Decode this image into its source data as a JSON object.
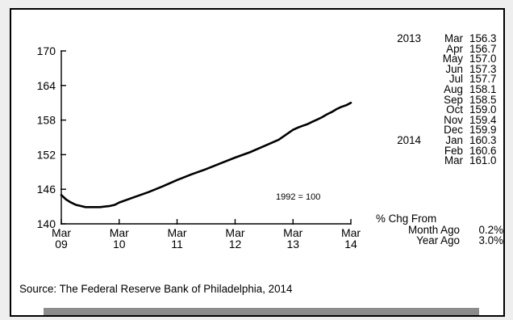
{
  "chart_data": {
    "type": "line",
    "x": [
      "2009-03",
      "2009-04",
      "2009-05",
      "2009-06",
      "2009-07",
      "2009-08",
      "2009-09",
      "2009-10",
      "2009-11",
      "2009-12",
      "2010-01",
      "2010-02",
      "2010-03",
      "2010-06",
      "2010-09",
      "2010-12",
      "2011-03",
      "2011-06",
      "2011-09",
      "2011-12",
      "2012-03",
      "2012-06",
      "2012-09",
      "2012-12",
      "2013-03",
      "2013-04",
      "2013-05",
      "2013-06",
      "2013-07",
      "2013-08",
      "2013-09",
      "2013-10",
      "2013-11",
      "2013-12",
      "2014-01",
      "2014-02",
      "2014-03"
    ],
    "y": [
      145.0,
      144.2,
      143.7,
      143.3,
      143.1,
      142.9,
      142.9,
      142.9,
      142.9,
      143.0,
      143.1,
      143.3,
      143.7,
      144.6,
      145.5,
      146.5,
      147.6,
      148.6,
      149.5,
      150.5,
      151.5,
      152.4,
      153.5,
      154.6,
      156.3,
      156.7,
      157.0,
      157.3,
      157.7,
      158.1,
      158.5,
      159.0,
      159.4,
      159.9,
      160.3,
      160.6,
      161.0
    ],
    "ylim": [
      140,
      170
    ],
    "yticks": [
      140,
      146,
      152,
      158,
      164,
      170
    ],
    "xticks": [
      {
        "date": "2009-03",
        "line1": "Mar",
        "line2": "09"
      },
      {
        "date": "2010-03",
        "line1": "Mar",
        "line2": "10"
      },
      {
        "date": "2011-03",
        "line1": "Mar",
        "line2": "11"
      },
      {
        "date": "2012-03",
        "line1": "Mar",
        "line2": "12"
      },
      {
        "date": "2013-03",
        "line1": "Mar",
        "line2": "13"
      },
      {
        "date": "2014-03",
        "line1": "Mar",
        "line2": "14"
      }
    ],
    "annotation": "1992 = 100",
    "grid": false,
    "line_color": "#000000"
  },
  "table": [
    {
      "year": "2013",
      "month": "Mar",
      "value": "156.3"
    },
    {
      "year": "",
      "month": "Apr",
      "value": "156.7"
    },
    {
      "year": "",
      "month": "May",
      "value": "157.0"
    },
    {
      "year": "",
      "month": "Jun",
      "value": "157.3"
    },
    {
      "year": "",
      "month": "Jul",
      "value": "157.7"
    },
    {
      "year": "",
      "month": "Aug",
      "value": "158.1"
    },
    {
      "year": "",
      "month": "Sep",
      "value": "158.5"
    },
    {
      "year": "",
      "month": "Oct",
      "value": "159.0"
    },
    {
      "year": "",
      "month": "Nov",
      "value": "159.4"
    },
    {
      "year": "",
      "month": "Dec",
      "value": "159.9"
    },
    {
      "year": "2014",
      "month": "Jan",
      "value": "160.3"
    },
    {
      "year": "",
      "month": "Feb",
      "value": "160.6"
    },
    {
      "year": "",
      "month": "Mar",
      "value": "161.0"
    }
  ],
  "pct_change": {
    "title": "% Chg From",
    "rows": [
      {
        "label": "Month Ago",
        "value": "0.2%"
      },
      {
        "label": "Year Ago",
        "value": "3.0%"
      }
    ]
  },
  "source": "Source: The Federal Reserve Bank of Philadelphia, 2014",
  "colors": {
    "band": "#8c8c8c",
    "frame": "#000000",
    "background": "#eeeeee"
  }
}
